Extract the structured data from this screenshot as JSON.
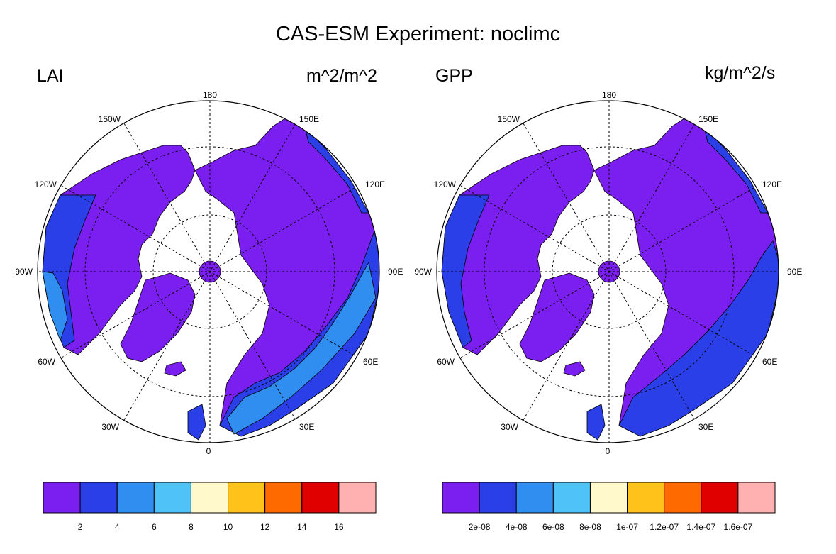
{
  "title": "CAS-ESM Experiment: noclimc",
  "colors": {
    "purple": "#7a1ff0",
    "blue": "#2a3fe8",
    "mid_blue": "#2f8ef0",
    "light_blue": "#4fc2f8",
    "cream": "#fff9cc",
    "gold": "#ffc21a",
    "orange": "#ff6a00",
    "red": "#e00000",
    "pink": "#ffb0b0"
  },
  "panels": [
    {
      "variable": "LAI",
      "units": "m^2/m^2",
      "lon_labels": [
        "180",
        "150E",
        "120E",
        "90E",
        "60E",
        "30E",
        "0",
        "30W",
        "60W",
        "90W",
        "120W",
        "150W"
      ],
      "colorbar": {
        "colors": [
          "#7a1ff0",
          "#2a3fe8",
          "#2f8ef0",
          "#4fc2f8",
          "#fff9cc",
          "#ffc21a",
          "#ff6a00",
          "#e00000",
          "#ffb0b0"
        ],
        "ticks": [
          "2",
          "4",
          "6",
          "8",
          "10",
          "12",
          "14",
          "16"
        ]
      }
    },
    {
      "variable": "GPP",
      "units": "kg/m^2/s",
      "lon_labels": [
        "180",
        "150E",
        "120E",
        "90E",
        "60E",
        "30E",
        "0",
        "30W",
        "60W",
        "90W",
        "120W",
        "150W"
      ],
      "colorbar": {
        "colors": [
          "#7a1ff0",
          "#2a3fe8",
          "#2f8ef0",
          "#4fc2f8",
          "#fff9cc",
          "#ffc21a",
          "#ff6a00",
          "#e00000",
          "#ffb0b0"
        ],
        "ticks": [
          "2e-08",
          "4e-08",
          "6e-08",
          "8e-08",
          "1e-07",
          "1.2e-07",
          "1.4e-07",
          "1.6e-07"
        ]
      }
    }
  ]
}
